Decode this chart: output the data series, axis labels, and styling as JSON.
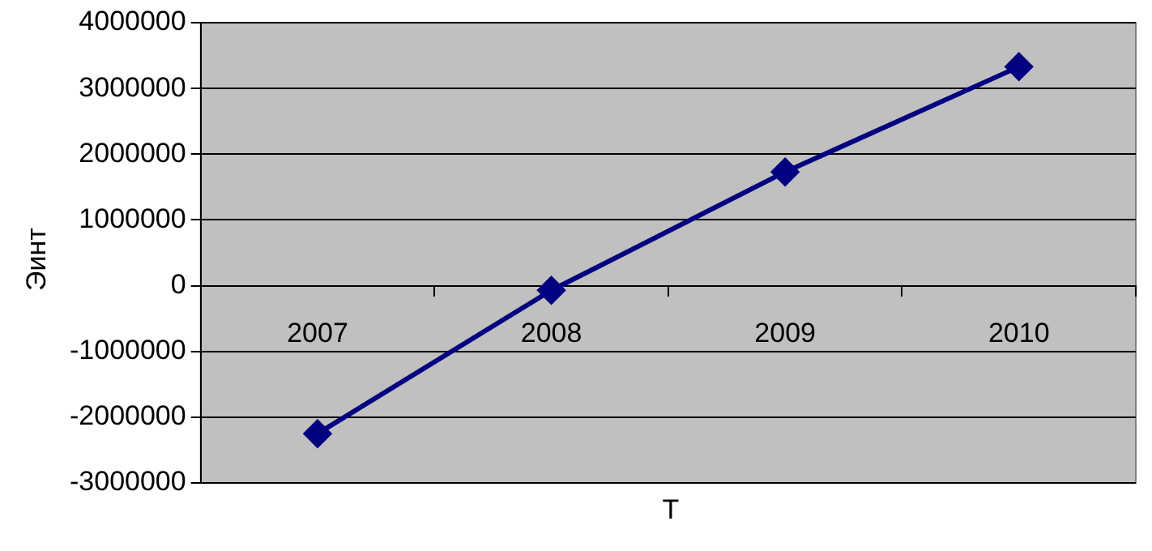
{
  "chart_data": {
    "type": "line",
    "xlabel": "T",
    "ylabel": "Эинт",
    "categories": [
      "2007",
      "2008",
      "2009",
      "2010"
    ],
    "series": [
      {
        "color": "#000080",
        "values": [
          -2250000,
          -70000,
          1730000,
          3330000
        ]
      }
    ],
    "ylim": [
      -3000000,
      4000000
    ],
    "yticks": [
      -3000000,
      -2000000,
      -1000000,
      0,
      1000000,
      2000000,
      3000000,
      4000000
    ],
    "grid": "y",
    "legend": false,
    "marker": "diamond",
    "line_style": "solid"
  }
}
